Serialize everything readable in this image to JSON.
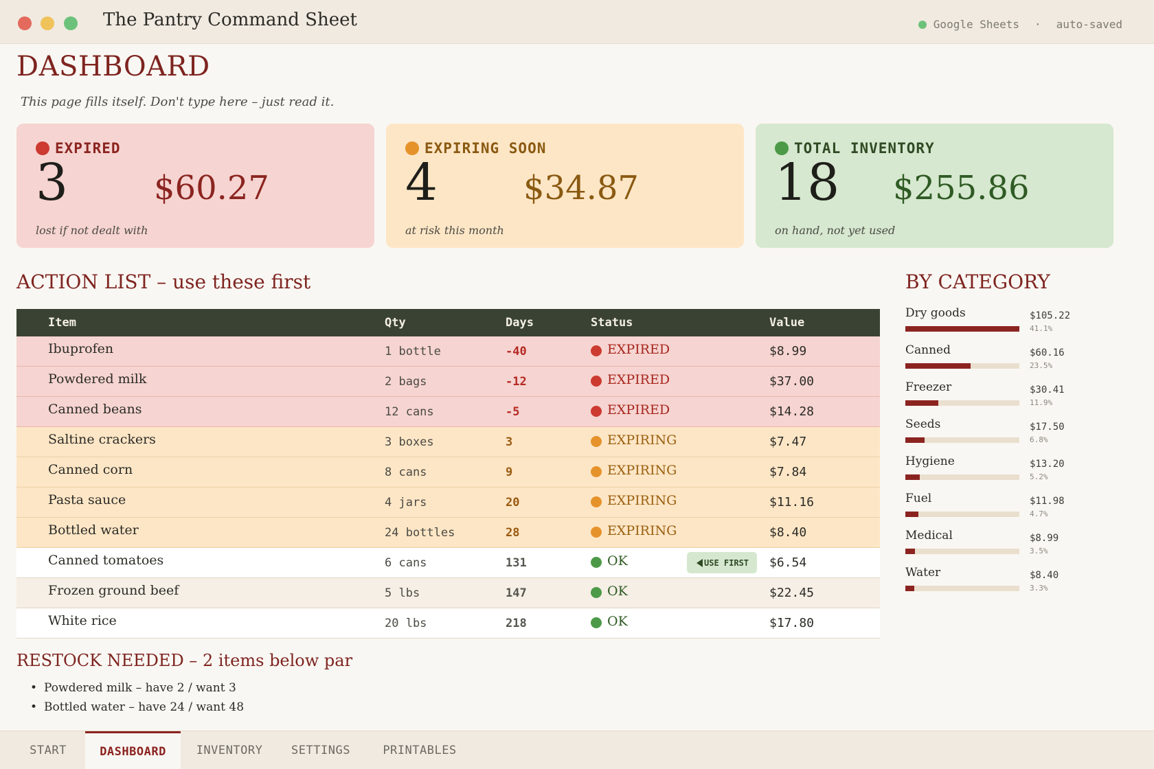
{
  "window": {
    "title": "The Pantry Command Sheet",
    "app_name": "Google Sheets",
    "separator": "·",
    "save_status": "auto-saved"
  },
  "page": {
    "title": "DASHBOARD",
    "subtitle": "This page fills itself. Don't type here – just read it."
  },
  "cards": {
    "expired": {
      "label": "EXPIRED",
      "count": "3",
      "value": "$60.27",
      "note": "lost if not dealt with"
    },
    "soon": {
      "label": "EXPIRING SOON",
      "count": "4",
      "value": "$34.87",
      "note": "at risk this month"
    },
    "total": {
      "label": "TOTAL INVENTORY",
      "count": "18",
      "value": "$255.86",
      "note": "on hand, not yet used"
    }
  },
  "action_list": {
    "title": "ACTION LIST – use these first",
    "headers": {
      "item": "Item",
      "qty": "Qty",
      "days": "Days",
      "status": "Status",
      "value": "Value"
    },
    "use_first_label": "USE FIRST",
    "rows": [
      {
        "item": "Ibuprofen",
        "qty": "1 bottle",
        "days": "-40",
        "status": "EXPIRED",
        "value": "$8.99",
        "kind": "expired"
      },
      {
        "item": "Powdered milk",
        "qty": "2 bags",
        "days": "-12",
        "status": "EXPIRED",
        "value": "$37.00",
        "kind": "expired"
      },
      {
        "item": "Canned beans",
        "qty": "12 cans",
        "days": "-5",
        "status": "EXPIRED",
        "value": "$14.28",
        "kind": "expired"
      },
      {
        "item": "Saltine crackers",
        "qty": "3 boxes",
        "days": "3",
        "status": "EXPIRING",
        "value": "$7.47",
        "kind": "soon"
      },
      {
        "item": "Canned corn",
        "qty": "8 cans",
        "days": "9",
        "status": "EXPIRING",
        "value": "$7.84",
        "kind": "soon"
      },
      {
        "item": "Pasta sauce",
        "qty": "4 jars",
        "days": "20",
        "status": "EXPIRING",
        "value": "$11.16",
        "kind": "soon"
      },
      {
        "item": "Bottled water",
        "qty": "24 bottles",
        "days": "28",
        "status": "EXPIRING",
        "value": "$8.40",
        "kind": "soon"
      },
      {
        "item": "Canned tomatoes",
        "qty": "6 cans",
        "days": "131",
        "status": "OK",
        "value": "$6.54",
        "kind": "ok",
        "use_first": true
      },
      {
        "item": "Frozen ground beef",
        "qty": "5 lbs",
        "days": "147",
        "status": "OK",
        "value": "$22.45",
        "kind": "alt"
      },
      {
        "item": "White rice",
        "qty": "20 lbs",
        "days": "218",
        "status": "OK",
        "value": "$17.80",
        "kind": "ok"
      }
    ]
  },
  "by_category": {
    "title": "BY CATEGORY",
    "items": [
      {
        "name": "Dry goods",
        "value": "$105.22",
        "pct": "41.1%",
        "share": 1.0
      },
      {
        "name": "Canned",
        "value": "$60.16",
        "pct": "23.5%",
        "share": 0.572
      },
      {
        "name": "Freezer",
        "value": "$30.41",
        "pct": "11.9%",
        "share": 0.289
      },
      {
        "name": "Seeds",
        "value": "$17.50",
        "pct": "6.8%",
        "share": 0.166
      },
      {
        "name": "Hygiene",
        "value": "$13.20",
        "pct": "5.2%",
        "share": 0.125
      },
      {
        "name": "Fuel",
        "value": "$11.98",
        "pct": "4.7%",
        "share": 0.114
      },
      {
        "name": "Medical",
        "value": "$8.99",
        "pct": "3.5%",
        "share": 0.085
      },
      {
        "name": "Water",
        "value": "$8.40",
        "pct": "3.3%",
        "share": 0.08
      }
    ]
  },
  "restock": {
    "title": "RESTOCK NEEDED – 2 items below par",
    "items": [
      "Powdered milk – have 2 / want 3",
      "Bottled water – have 24 / want 48"
    ]
  },
  "tabs": [
    {
      "label": "START",
      "active": false
    },
    {
      "label": "DASHBOARD",
      "active": true
    },
    {
      "label": "INVENTORY",
      "active": false
    },
    {
      "label": "SETTINGS",
      "active": false
    },
    {
      "label": "PRINTABLES",
      "active": false
    }
  ]
}
